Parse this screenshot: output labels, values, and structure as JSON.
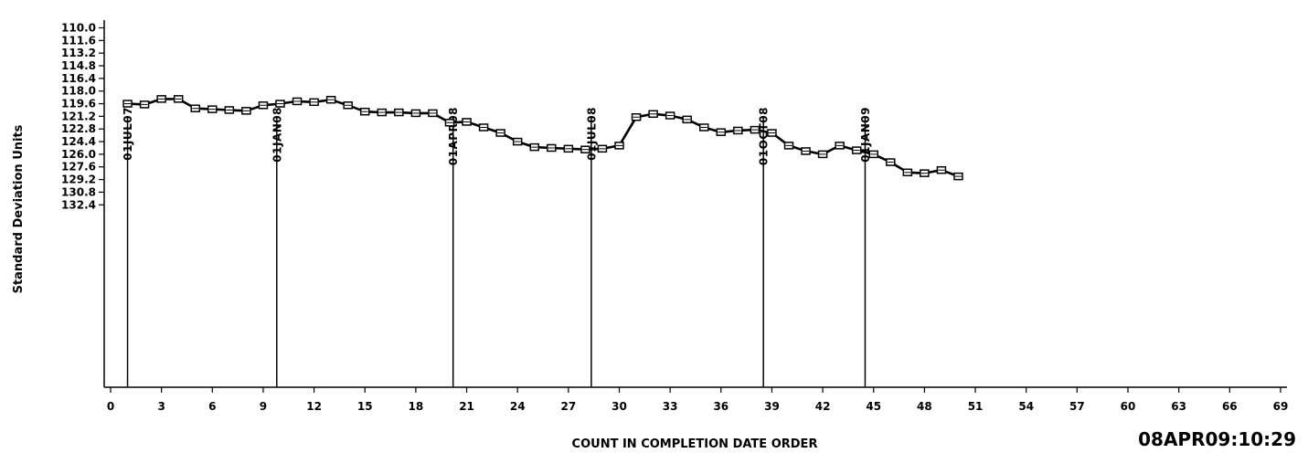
{
  "chart_data": {
    "type": "line",
    "title": "",
    "xlabel": "COUNT IN COMPLETION DATE ORDER",
    "ylabel": "Standard Deviation Units",
    "xlim": [
      0,
      69
    ],
    "ylim": [
      110.0,
      133.2
    ],
    "y_inverted": true,
    "x_ticks": [
      0,
      3,
      6,
      9,
      12,
      15,
      18,
      21,
      24,
      27,
      30,
      33,
      36,
      39,
      42,
      45,
      48,
      51,
      54,
      57,
      60,
      63,
      66,
      69
    ],
    "y_ticks": [
      "110.0",
      "111.6",
      "113.2",
      "114.8",
      "116.4",
      "118.0",
      "119.6",
      "121.2",
      "122.8",
      "124.4",
      "126.0",
      "127.6",
      "129.2",
      "130.8",
      "132.4"
    ],
    "grid": false,
    "reference_lines": [
      {
        "x": 1,
        "label": "01JUL07"
      },
      {
        "x": 9.8,
        "label": "01JAN08"
      },
      {
        "x": 20.2,
        "label": "01APR08"
      },
      {
        "x": 28.35,
        "label": "01JUL08"
      },
      {
        "x": 38.5,
        "label": "01OCT08"
      },
      {
        "x": 44.5,
        "label": "01JAN09"
      }
    ],
    "series": [
      {
        "marker": "square",
        "x": [
          1,
          2,
          3,
          4,
          5,
          6,
          7,
          8,
          9,
          10,
          11,
          12,
          13,
          14,
          15,
          16,
          17,
          18,
          19,
          20,
          21,
          22,
          23,
          24,
          25,
          26,
          27,
          28,
          29,
          30,
          31,
          32,
          33,
          34,
          35,
          36,
          37,
          38,
          39,
          40,
          41,
          42,
          43,
          44,
          45,
          46,
          47,
          48,
          49,
          50
        ],
        "y": [
          119.6,
          119.7,
          119.0,
          119.0,
          120.2,
          120.3,
          120.4,
          120.5,
          119.8,
          119.6,
          119.3,
          119.4,
          119.1,
          119.8,
          120.6,
          120.7,
          120.7,
          120.8,
          120.8,
          122.0,
          121.9,
          122.6,
          123.3,
          124.4,
          125.1,
          125.2,
          125.3,
          125.4,
          125.3,
          124.9,
          121.3,
          120.9,
          121.1,
          121.6,
          122.6,
          123.2,
          123.0,
          122.9,
          123.3,
          124.9,
          125.6,
          126.0,
          124.9,
          125.5,
          126.0,
          127.0,
          128.3,
          128.4,
          128.0,
          128.8
        ]
      }
    ]
  },
  "timestamp": "08APR09:10:29",
  "style": {
    "line_color": "#000000",
    "background": "#ffffff"
  }
}
